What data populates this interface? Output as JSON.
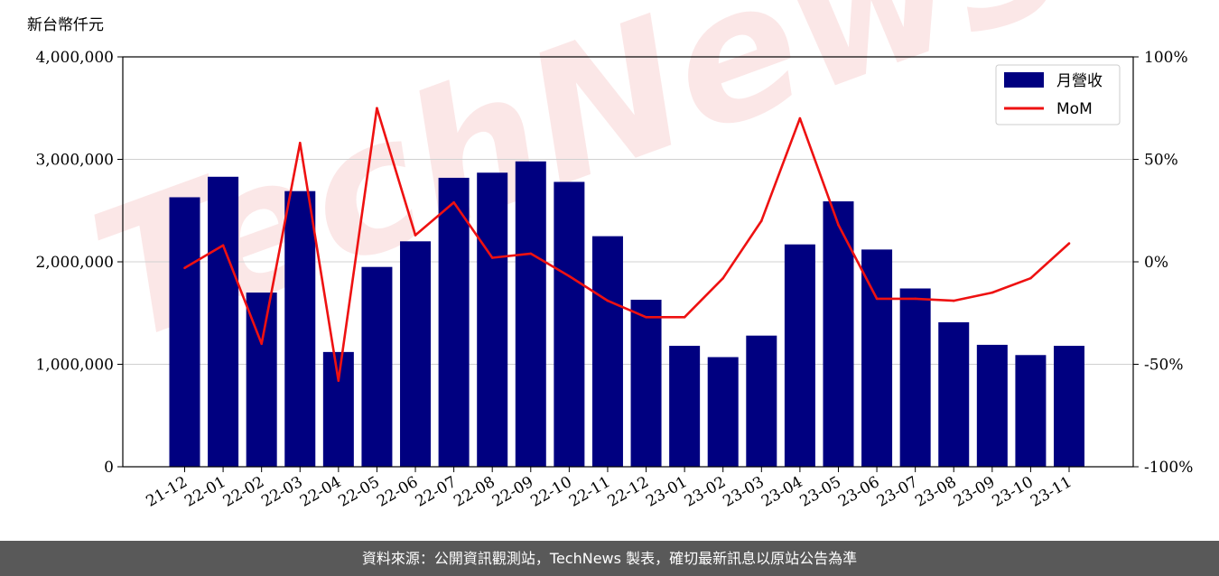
{
  "chart_data": {
    "type": "bar",
    "unit_label": "新台幣仟元",
    "categories": [
      "21-12",
      "22-01",
      "22-02",
      "22-03",
      "22-04",
      "22-05",
      "22-06",
      "22-07",
      "22-08",
      "22-09",
      "22-10",
      "22-11",
      "22-12",
      "23-01",
      "23-02",
      "23-03",
      "23-04",
      "23-05",
      "23-06",
      "23-07",
      "23-08",
      "23-09",
      "23-10",
      "23-11"
    ],
    "series": [
      {
        "name": "月營收",
        "type": "bar",
        "axis": "left",
        "color": "#000080",
        "values": [
          2630000,
          2830000,
          1700000,
          2690000,
          1120000,
          1950000,
          2200000,
          2820000,
          2870000,
          2980000,
          2780000,
          2250000,
          1630000,
          1180000,
          1070000,
          1280000,
          2170000,
          2590000,
          2120000,
          1740000,
          1410000,
          1190000,
          1090000,
          1180000
        ]
      },
      {
        "name": "MoM",
        "type": "line",
        "axis": "right",
        "color": "#ee1111",
        "values": [
          -3,
          8,
          -40,
          58,
          -58,
          75,
          13,
          29,
          2,
          4,
          -7,
          -19,
          -27,
          -27,
          -8,
          20,
          70,
          18,
          -18,
          -18,
          -19,
          -15,
          -8,
          9
        ]
      }
    ],
    "left_axis": {
      "ylim": [
        0,
        4000000
      ],
      "ticks": [
        0,
        1000000,
        2000000,
        3000000,
        4000000
      ],
      "tick_labels": [
        "0",
        "1,000,000",
        "2,000,000",
        "3,000,000",
        "4,000,000"
      ]
    },
    "right_axis": {
      "ylim": [
        -100,
        100
      ],
      "ticks": [
        -100,
        -50,
        0,
        50,
        100
      ],
      "tick_labels": [
        "-100%",
        "-50%",
        "0%",
        "50%",
        "100%"
      ]
    },
    "grid": true,
    "legend_placement": "top-right"
  },
  "watermark": "TechNews",
  "footer": "資料來源：公開資訊觀測站，TechNews 製表，確切最新訊息以原站公告為準"
}
